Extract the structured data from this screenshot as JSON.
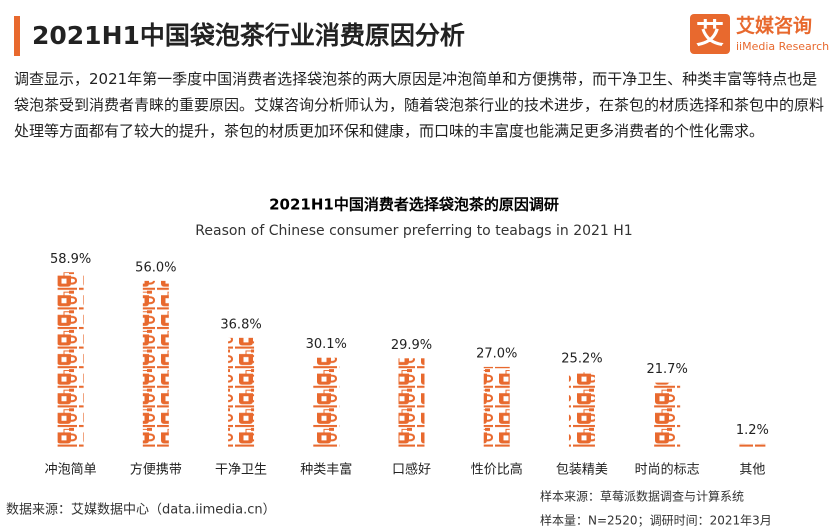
{
  "header": {
    "title": "2021H1中国袋泡茶行业消费原因分析",
    "logo": {
      "mark": "艾",
      "name": "艾媒咨询",
      "sub": "iiMedia Research"
    }
  },
  "intro": "调查显示，2021年第一季度中国消费者选择袋泡茶的两大原因是冲泡简单和方便携带，而干净卫生、种类丰富等特点也是袋泡茶受到消费者青睐的重要原因。艾媒咨询分析师认为，随着袋泡茶行业的技术进步，在茶包的材质选择和茶包中的原料处理等方面都有了较大的提升，茶包的材质更加环保和健康，而口味的丰富度也能满足更多消费者的个性化需求。",
  "chart_data": {
    "type": "bar",
    "title": "2021H1中国消费者选择袋泡茶的原因调研",
    "subtitle": "Reason of Chinese consumer preferring to teabags in 2021 H1",
    "categories": [
      "冲泡简单",
      "方便携带",
      "干净卫生",
      "种类丰富",
      "口感好",
      "性价比高",
      "包装精美",
      "时尚的标志",
      "其他"
    ],
    "values": [
      58.9,
      56.0,
      36.8,
      30.1,
      29.9,
      27.0,
      25.2,
      21.7,
      1.2
    ],
    "value_labels": [
      "58.9%",
      "56.0%",
      "36.8%",
      "30.1%",
      "29.9%",
      "27.0%",
      "25.2%",
      "21.7%",
      "1.2%"
    ],
    "color": "#e8692e",
    "ylim": [
      0,
      60
    ]
  },
  "footer": {
    "source": "数据来源：艾媒数据中心（data.iimedia.cn）",
    "sample_source": "样本来源：草莓派数据调查与计算系统",
    "sample_size": "样本量：N=2520；调研时间：2021年3月"
  }
}
